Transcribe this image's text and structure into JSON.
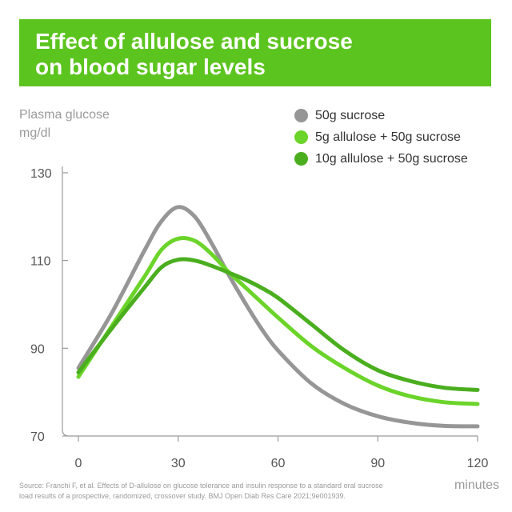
{
  "title_lines": [
    "Effect of allulose and sucrose",
    "on blood sugar levels"
  ],
  "source_lines": [
    "Source: Franchi F, et al. Effects of D-allulose on glucose tolerance and insulin response to a standard oral sucrose",
    "load results of a prospective, randomized, crossover study. BMJ Open Diab Res Care 2021;9e001939."
  ],
  "colors": {
    "title_bg": "#5cc41e",
    "axis": "#9a9a9a"
  },
  "chart_data": {
    "type": "line",
    "title": "Effect of allulose and sucrose on blood sugar levels",
    "ylabel_lines": [
      "Plasma glucose",
      "mg/dl"
    ],
    "xlabel": "minutes",
    "xlim": [
      0,
      120
    ],
    "ylim": [
      70,
      130
    ],
    "x_ticks": [
      0,
      30,
      60,
      90,
      120
    ],
    "y_ticks": [
      70,
      90,
      110,
      130
    ],
    "grid": false,
    "legend_position": "top-right",
    "series": [
      {
        "name": "50g sucrose",
        "color": "#969696",
        "x": [
          0,
          10,
          20,
          25,
          30,
          35,
          40,
          45,
          50,
          55,
          60,
          70,
          80,
          90,
          100,
          110,
          120
        ],
        "values": [
          85.5,
          98,
          112.5,
          119,
          122.2,
          120,
          114,
          107,
          100.5,
          94.5,
          89.5,
          82,
          77.3,
          74.5,
          73,
          72.3,
          72.2
        ]
      },
      {
        "name": "5g allulose + 50g sucrose",
        "color": "#6bd42a",
        "x": [
          0,
          10,
          20,
          25,
          30,
          35,
          40,
          45,
          50,
          55,
          60,
          70,
          80,
          90,
          100,
          110,
          120
        ],
        "values": [
          83.5,
          95,
          106.5,
          112.5,
          115,
          114.5,
          111.5,
          107.5,
          104,
          100.5,
          97,
          90.5,
          85.5,
          81.5,
          79,
          77.7,
          77.3
        ]
      },
      {
        "name": "10g allulose + 50g sucrose",
        "color": "#4aae1e",
        "x": [
          0,
          10,
          20,
          25,
          30,
          35,
          40,
          45,
          50,
          55,
          60,
          70,
          80,
          90,
          100,
          110,
          120
        ],
        "values": [
          84.5,
          94.5,
          104,
          108.5,
          110.2,
          110,
          108.8,
          107.3,
          105.7,
          103.8,
          101.5,
          95.5,
          89.5,
          85,
          82.5,
          81,
          80.5
        ]
      }
    ]
  }
}
